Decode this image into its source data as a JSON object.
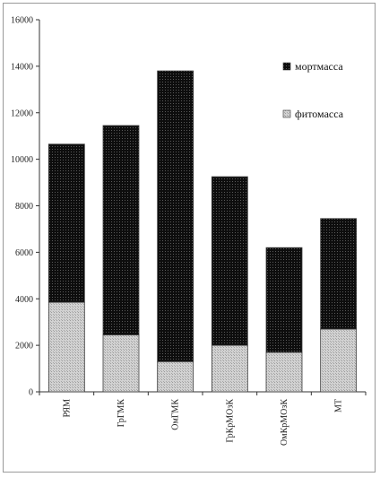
{
  "chart_data": {
    "type": "bar",
    "stacked": true,
    "categories": [
      "РЯМ",
      "ГрГМК",
      "ОмГМК",
      "ГрКрМОзК",
      "ОмКрМОзК",
      "МТ"
    ],
    "series": [
      {
        "name": "фитомасса",
        "values": [
          3850,
          2450,
          1300,
          2000,
          1700,
          2700
        ],
        "color": "#c8c8c8",
        "pattern": "fine-hatch"
      },
      {
        "name": "мортмасса",
        "values": [
          6800,
          9000,
          12500,
          7250,
          4500,
          4750
        ],
        "color": "#111111",
        "pattern": "dots"
      }
    ],
    "ylim": [
      0,
      16000
    ],
    "yticks": [
      0,
      2000,
      4000,
      6000,
      8000,
      10000,
      12000,
      14000,
      16000
    ],
    "grid": false,
    "legend": "top-right",
    "legend_entries": [
      {
        "series": "мортмасса"
      },
      {
        "series": "фитомасса"
      }
    ]
  }
}
